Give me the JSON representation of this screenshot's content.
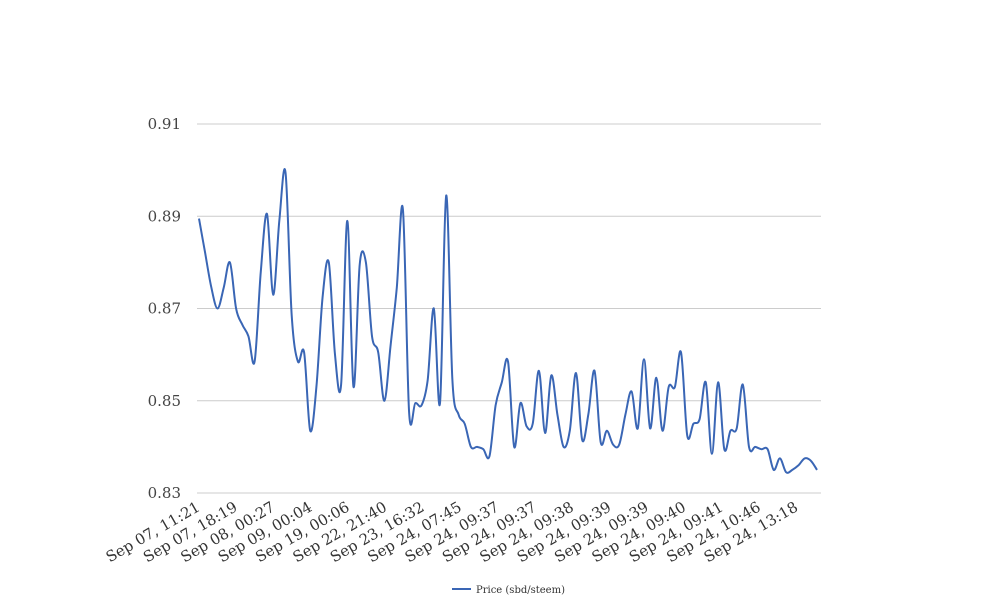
{
  "chart_data": {
    "type": "line",
    "title": "",
    "xlabel": "",
    "ylabel": "",
    "ylim": [
      0.83,
      0.91
    ],
    "yticks": [
      "0.91",
      "0.89",
      "0.87",
      "0.85",
      "0.83"
    ],
    "xtick_labels": [
      "Sep 07, 11:21",
      "Sep 07, 18:19",
      "Sep 08, 00:27",
      "Sep 09, 00:04",
      "Sep 19, 00:06",
      "Sep 22, 21:40",
      "Sep 23, 16:32",
      "Sep 24, 07:45",
      "Sep 24, 09:37",
      "Sep 24, 09:37",
      "Sep 24, 09:38",
      "Sep 24, 09:39",
      "Sep 24, 09:39",
      "Sep 24, 09:40",
      "Sep 24, 09:41",
      "Sep 24, 10:46",
      "Sep 24, 13:18"
    ],
    "grid": true,
    "legend_position": "bottom",
    "series": [
      {
        "name": "Price (sbd/steem)",
        "color": "#3a66b5",
        "values": [
          0.8895,
          0.882,
          0.8745,
          0.87,
          0.8745,
          0.88,
          0.87,
          0.8665,
          0.864,
          0.8585,
          0.878,
          0.8905,
          0.873,
          0.889,
          0.8995,
          0.8685,
          0.8585,
          0.8605,
          0.8435,
          0.853,
          0.8725,
          0.88,
          0.86,
          0.8535,
          0.889,
          0.853,
          0.8795,
          0.88,
          0.864,
          0.8605,
          0.85,
          0.862,
          0.8745,
          0.8915,
          0.8475,
          0.8495,
          0.849,
          0.8545,
          0.87,
          0.8495,
          0.8945,
          0.8545,
          0.847,
          0.845,
          0.84,
          0.84,
          0.8395,
          0.838,
          0.849,
          0.854,
          0.8585,
          0.84,
          0.8495,
          0.8445,
          0.845,
          0.8565,
          0.843,
          0.8555,
          0.847,
          0.84,
          0.8435,
          0.856,
          0.8415,
          0.847,
          0.8565,
          0.841,
          0.8435,
          0.8405,
          0.8405,
          0.847,
          0.852,
          0.844,
          0.859,
          0.844,
          0.855,
          0.8435,
          0.853,
          0.853,
          0.8605,
          0.8425,
          0.845,
          0.846,
          0.854,
          0.8385,
          0.854,
          0.8395,
          0.8435,
          0.844,
          0.8535,
          0.84,
          0.84,
          0.8395,
          0.8395,
          0.835,
          0.8375,
          0.8345,
          0.835,
          0.836,
          0.8375,
          0.837,
          0.835
        ]
      }
    ]
  }
}
